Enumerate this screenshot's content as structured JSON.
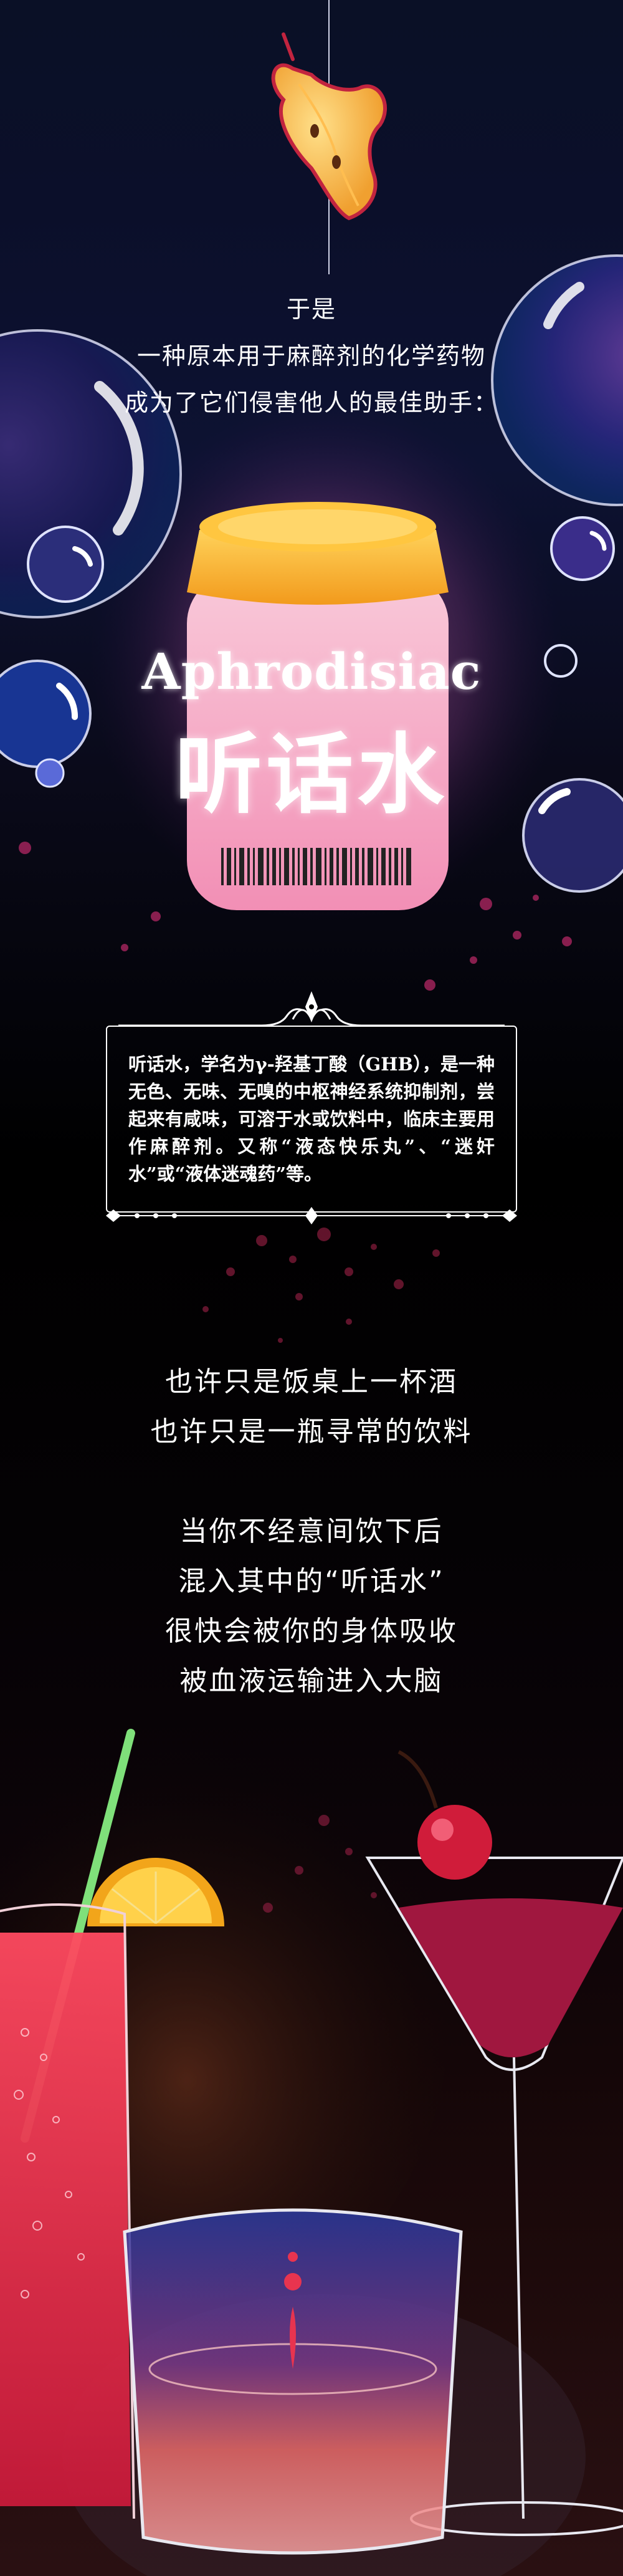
{
  "intro": {
    "line1": "于是",
    "line2": "一种原本用于麻醉剂的化学药物",
    "line3": "成为了它们侵害他人的最佳助手："
  },
  "bottle": {
    "label_en": "Aphrodisiac",
    "label_cn": "听话水"
  },
  "definition": {
    "text": "听话水，学名为γ-羟基丁酸（GHB），是一种无色、无味、无嗅的中枢神经系统抑制剂，尝起来有咸味，可溶于水或饮料中，临床主要用作麻醉剂。又称“液态快乐丸”、“迷奸水”或“液体迷魂药”等。"
  },
  "story1": {
    "line1": "也许只是饭桌上一杯酒",
    "line2": "也许只是一瓶寻常的饮料"
  },
  "story2": {
    "line1": "当你不经意间饮下后",
    "line2": "混入其中的“听话水”",
    "line3": "很快会被你的身体吸收",
    "line4": "被血液运输进入大脑"
  },
  "colors": {
    "bottle_cap": "#f7b733",
    "bottle_body": "#f4a6c1",
    "cocktail": "#a0173f",
    "red_drink": "#e8344f",
    "straw": "#7fe07a"
  }
}
